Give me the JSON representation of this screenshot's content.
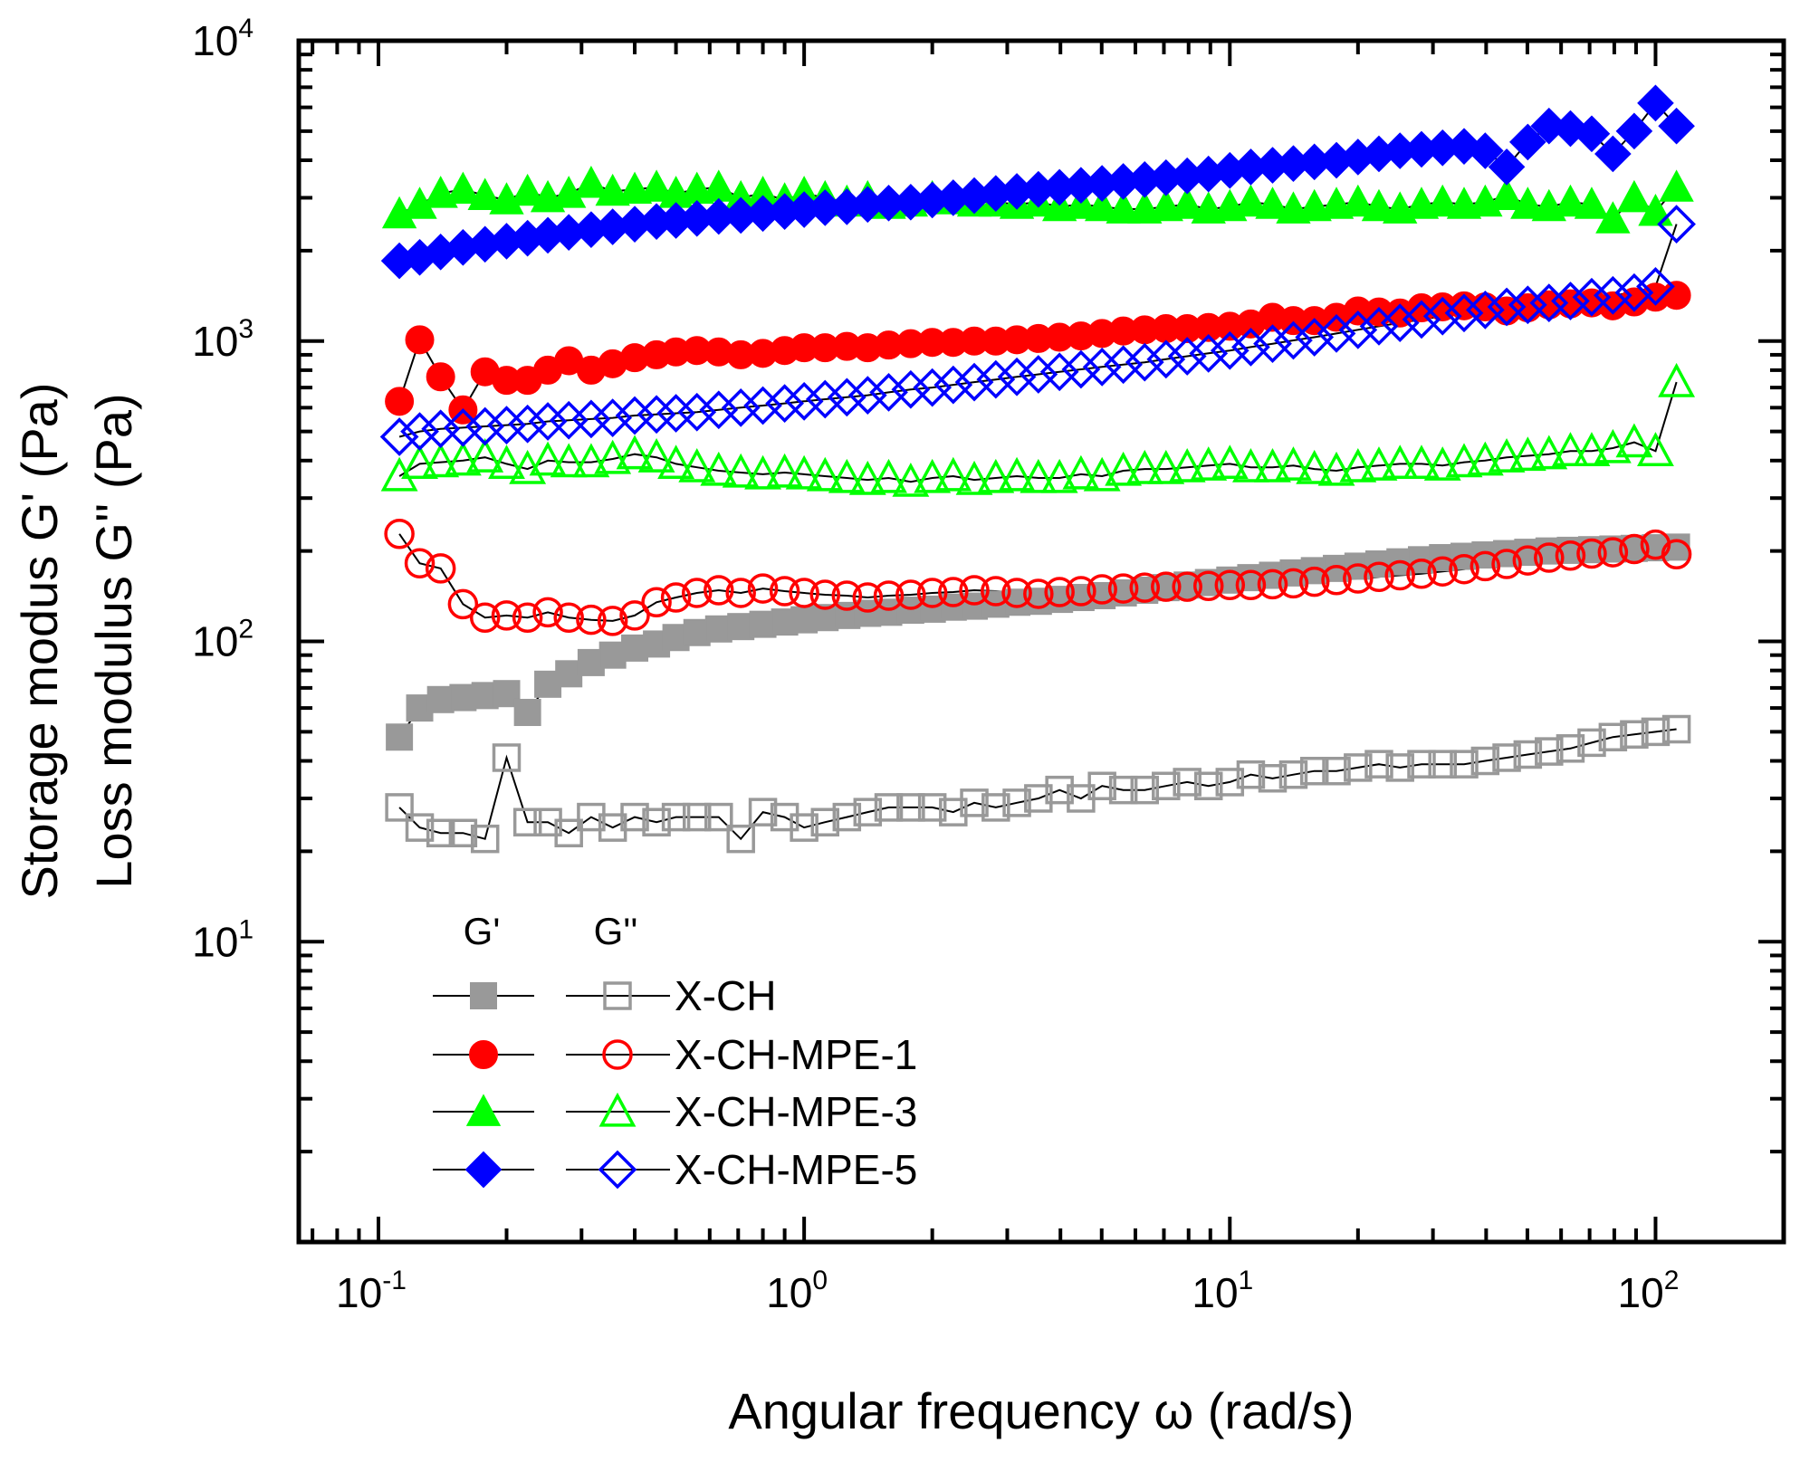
{
  "chart_data": {
    "type": "scatter",
    "xlabel": "Angular frequency ω (rad/s)",
    "ylabel_line1": "Storage modus G' (Pa)",
    "ylabel_line2": "Loss modulus G'' (Pa)",
    "xscale": "log",
    "yscale": "log",
    "xlim": [
      0.065,
      200
    ],
    "ylim": [
      1,
      10000
    ],
    "x_tick_labels": [
      {
        "value": 0.1,
        "base": "10",
        "exp": "-1"
      },
      {
        "value": 1,
        "base": "10",
        "exp": "0"
      },
      {
        "value": 10,
        "base": "10",
        "exp": "1"
      },
      {
        "value": 100,
        "base": "10",
        "exp": "2"
      }
    ],
    "y_tick_labels": [
      {
        "value": 10,
        "base": "10",
        "exp": "1"
      },
      {
        "value": 100,
        "base": "10",
        "exp": "2"
      },
      {
        "value": 1000,
        "base": "10",
        "exp": "3"
      },
      {
        "value": 10000,
        "base": "10",
        "exp": "4"
      }
    ],
    "legend": {
      "header_gp": "G'",
      "header_gpp": "G''",
      "placement": "bottom-left",
      "entries": [
        "X-CH",
        "X-CH-MPE-1",
        "X-CH-MPE-3",
        "X-CH-MPE-5"
      ]
    },
    "series": [
      {
        "name": "X-CH",
        "modulus": "G'",
        "marker": "square",
        "filled": true,
        "color": "#999999",
        "x": [
          0.112,
          0.125,
          0.14,
          0.158,
          0.178,
          0.2,
          0.224,
          0.25,
          0.28,
          0.316,
          0.355,
          0.4,
          0.45,
          0.5,
          0.56,
          0.63,
          0.71,
          0.8,
          0.9,
          1.0,
          1.12,
          1.26,
          1.41,
          1.58,
          1.78,
          2.0,
          2.24,
          2.51,
          2.82,
          3.16,
          3.55,
          3.98,
          4.47,
          5.01,
          5.62,
          6.31,
          7.08,
          7.94,
          8.91,
          10.0,
          11.2,
          12.6,
          14.1,
          15.8,
          17.8,
          20.0,
          22.4,
          25.1,
          28.2,
          31.6,
          35.5,
          39.8,
          44.7,
          50.1,
          56.2,
          63.1,
          70.8,
          79.4,
          89.1,
          100,
          112
        ],
        "y": [
          48,
          60,
          64,
          65,
          66,
          67,
          58,
          72,
          78,
          85,
          90,
          95,
          98,
          103,
          107,
          110,
          112,
          114,
          116,
          118,
          120,
          122,
          124,
          125,
          127,
          128,
          130,
          131,
          133,
          135,
          136,
          138,
          140,
          142,
          145,
          148,
          151,
          154,
          157,
          160,
          163,
          166,
          169,
          172,
          175,
          178,
          181,
          184,
          187,
          190,
          192,
          194,
          196,
          198,
          200,
          201,
          202,
          203,
          204,
          205,
          206
        ]
      },
      {
        "name": "X-CH",
        "modulus": "G''",
        "marker": "square",
        "filled": false,
        "color": "#999999",
        "x": [
          0.112,
          0.125,
          0.14,
          0.158,
          0.178,
          0.2,
          0.224,
          0.25,
          0.28,
          0.316,
          0.355,
          0.4,
          0.45,
          0.5,
          0.56,
          0.63,
          0.71,
          0.8,
          0.9,
          1.0,
          1.12,
          1.26,
          1.41,
          1.58,
          1.78,
          2.0,
          2.24,
          2.51,
          2.82,
          3.16,
          3.55,
          3.98,
          4.47,
          5.01,
          5.62,
          6.31,
          7.08,
          7.94,
          8.91,
          10.0,
          11.2,
          12.6,
          14.1,
          15.8,
          17.8,
          20.0,
          22.4,
          25.1,
          28.2,
          31.6,
          35.5,
          39.8,
          44.7,
          50.1,
          56.2,
          63.1,
          70.8,
          79.4,
          89.1,
          100,
          112
        ],
        "y": [
          28,
          24,
          23,
          23,
          22,
          41,
          25,
          25,
          23,
          26,
          24,
          26,
          25,
          26,
          26,
          26,
          22,
          27,
          26,
          24,
          25,
          26,
          27,
          28,
          28,
          28,
          27,
          29,
          28,
          29,
          30,
          32,
          30,
          33,
          32,
          32,
          33,
          34,
          33,
          34,
          36,
          35,
          36,
          37,
          37,
          38,
          39,
          38,
          39,
          39,
          39,
          40,
          41,
          42,
          43,
          44,
          46,
          48,
          49,
          50,
          51
        ]
      },
      {
        "name": "X-CH-MPE-1",
        "modulus": "G'",
        "marker": "circle",
        "filled": true,
        "color": "#ff0000",
        "x": [
          0.112,
          0.125,
          0.14,
          0.158,
          0.178,
          0.2,
          0.224,
          0.25,
          0.28,
          0.316,
          0.355,
          0.4,
          0.45,
          0.5,
          0.56,
          0.63,
          0.71,
          0.8,
          0.9,
          1.0,
          1.12,
          1.26,
          1.41,
          1.58,
          1.78,
          2.0,
          2.24,
          2.51,
          2.82,
          3.16,
          3.55,
          3.98,
          4.47,
          5.01,
          5.62,
          6.31,
          7.08,
          7.94,
          8.91,
          10.0,
          11.2,
          12.6,
          14.1,
          15.8,
          17.8,
          20.0,
          22.4,
          25.1,
          28.2,
          31.6,
          35.5,
          39.8,
          44.7,
          50.1,
          56.2,
          63.1,
          70.8,
          79.4,
          89.1,
          100,
          112
        ],
        "y": [
          630,
          1010,
          760,
          590,
          790,
          740,
          740,
          800,
          860,
          800,
          840,
          880,
          900,
          920,
          930,
          920,
          900,
          910,
          930,
          950,
          950,
          960,
          950,
          970,
          980,
          990,
          990,
          1000,
          1000,
          1010,
          1020,
          1030,
          1040,
          1060,
          1080,
          1090,
          1100,
          1100,
          1110,
          1120,
          1140,
          1200,
          1170,
          1170,
          1200,
          1260,
          1250,
          1240,
          1290,
          1300,
          1310,
          1300,
          1260,
          1290,
          1320,
          1330,
          1340,
          1310,
          1350,
          1400,
          1420
        ]
      },
      {
        "name": "X-CH-MPE-1",
        "modulus": "G''",
        "marker": "circle",
        "filled": false,
        "color": "#ff0000",
        "x": [
          0.112,
          0.125,
          0.14,
          0.158,
          0.178,
          0.2,
          0.224,
          0.25,
          0.28,
          0.316,
          0.355,
          0.4,
          0.45,
          0.5,
          0.56,
          0.63,
          0.71,
          0.8,
          0.9,
          1.0,
          1.12,
          1.26,
          1.41,
          1.58,
          1.78,
          2.0,
          2.24,
          2.51,
          2.82,
          3.16,
          3.55,
          3.98,
          4.47,
          5.01,
          5.62,
          6.31,
          7.08,
          7.94,
          8.91,
          10.0,
          11.2,
          12.6,
          14.1,
          15.8,
          17.8,
          20.0,
          22.4,
          25.1,
          28.2,
          31.6,
          35.5,
          39.8,
          44.7,
          50.1,
          56.2,
          63.1,
          70.8,
          79.4,
          89.1,
          100,
          112
        ],
        "y": [
          228,
          182,
          175,
          133,
          120,
          122,
          120,
          125,
          120,
          118,
          117,
          122,
          135,
          140,
          145,
          148,
          145,
          150,
          147,
          145,
          143,
          142,
          140,
          142,
          143,
          145,
          146,
          148,
          147,
          145,
          144,
          146,
          147,
          149,
          150,
          151,
          152,
          152,
          153,
          154,
          154,
          155,
          156,
          158,
          160,
          162,
          164,
          166,
          168,
          171,
          174,
          178,
          181,
          186,
          190,
          193,
          196,
          198,
          203,
          210,
          195
        ]
      },
      {
        "name": "X-CH-MPE-3",
        "modulus": "G'",
        "marker": "triangle",
        "filled": true,
        "color": "#00ff00",
        "x": [
          0.112,
          0.125,
          0.14,
          0.158,
          0.178,
          0.2,
          0.224,
          0.25,
          0.28,
          0.316,
          0.355,
          0.4,
          0.45,
          0.5,
          0.56,
          0.63,
          0.71,
          0.8,
          0.9,
          1.0,
          1.12,
          1.26,
          1.41,
          1.58,
          1.78,
          2.0,
          2.24,
          2.51,
          2.82,
          3.16,
          3.55,
          3.98,
          4.47,
          5.01,
          5.62,
          6.31,
          7.08,
          7.94,
          8.91,
          10.0,
          11.2,
          12.6,
          14.1,
          15.8,
          17.8,
          20.0,
          22.4,
          25.1,
          28.2,
          31.6,
          35.5,
          39.8,
          44.7,
          50.1,
          56.2,
          63.1,
          70.8,
          79.4,
          89.1,
          100,
          112
        ],
        "y": [
          2650,
          2850,
          3100,
          3200,
          3050,
          2950,
          3150,
          3000,
          3100,
          3350,
          3150,
          3200,
          3250,
          3100,
          3200,
          3250,
          3000,
          3100,
          2950,
          3100,
          3000,
          2900,
          3000,
          2850,
          2900,
          3000,
          2950,
          2900,
          2900,
          2850,
          2900,
          2800,
          2850,
          2800,
          2750,
          2750,
          2800,
          2850,
          2750,
          2800,
          2900,
          2850,
          2750,
          2800,
          2850,
          2900,
          2800,
          2750,
          2850,
          2900,
          2850,
          2900,
          3050,
          2850,
          2800,
          2900,
          2850,
          2550,
          3000,
          2700,
          3250
        ]
      },
      {
        "name": "X-CH-MPE-3",
        "modulus": "G''",
        "marker": "triangle",
        "filled": false,
        "color": "#00ff00",
        "x": [
          0.112,
          0.125,
          0.14,
          0.158,
          0.178,
          0.2,
          0.224,
          0.25,
          0.28,
          0.316,
          0.355,
          0.4,
          0.45,
          0.5,
          0.56,
          0.63,
          0.71,
          0.8,
          0.9,
          1.0,
          1.12,
          1.26,
          1.41,
          1.58,
          1.78,
          2.0,
          2.24,
          2.51,
          2.82,
          3.16,
          3.55,
          3.98,
          4.47,
          5.01,
          5.62,
          6.31,
          7.08,
          7.94,
          8.91,
          10.0,
          11.2,
          12.6,
          14.1,
          15.8,
          17.8,
          20.0,
          22.4,
          25.1,
          28.2,
          31.6,
          35.5,
          39.8,
          44.7,
          50.1,
          56.2,
          63.1,
          70.8,
          79.4,
          89.1,
          100,
          112
        ],
        "y": [
          355,
          390,
          395,
          400,
          410,
          390,
          375,
          400,
          395,
          395,
          405,
          420,
          410,
          390,
          380,
          370,
          365,
          360,
          365,
          360,
          355,
          350,
          345,
          350,
          340,
          350,
          355,
          345,
          350,
          355,
          350,
          350,
          360,
          355,
          370,
          375,
          375,
          380,
          385,
          390,
          380,
          380,
          385,
          375,
          370,
          380,
          385,
          390,
          390,
          385,
          395,
          400,
          410,
          415,
          420,
          430,
          430,
          440,
          460,
          430,
          730
        ]
      },
      {
        "name": "X-CH-MPE-5",
        "modulus": "G'",
        "marker": "diamond",
        "filled": true,
        "color": "#0000ff",
        "x": [
          0.112,
          0.125,
          0.14,
          0.158,
          0.178,
          0.2,
          0.224,
          0.25,
          0.28,
          0.316,
          0.355,
          0.4,
          0.45,
          0.5,
          0.56,
          0.63,
          0.71,
          0.8,
          0.9,
          1.0,
          1.12,
          1.26,
          1.41,
          1.58,
          1.78,
          2.0,
          2.24,
          2.51,
          2.82,
          3.16,
          3.55,
          3.98,
          4.47,
          5.01,
          5.62,
          6.31,
          7.08,
          7.94,
          8.91,
          10.0,
          11.2,
          12.6,
          14.1,
          15.8,
          17.8,
          20.0,
          22.4,
          25.1,
          28.2,
          31.6,
          35.5,
          39.8,
          44.7,
          50.1,
          56.2,
          63.1,
          70.8,
          79.4,
          89.1,
          100,
          112
        ],
        "y": [
          1850,
          1900,
          1980,
          2050,
          2100,
          2150,
          2200,
          2250,
          2300,
          2350,
          2400,
          2450,
          2500,
          2520,
          2560,
          2600,
          2620,
          2660,
          2700,
          2740,
          2780,
          2800,
          2850,
          2880,
          2900,
          2950,
          3000,
          3050,
          3100,
          3150,
          3200,
          3250,
          3300,
          3350,
          3400,
          3450,
          3500,
          3550,
          3600,
          3700,
          3800,
          3850,
          3900,
          3950,
          4000,
          4100,
          4200,
          4300,
          4350,
          4400,
          4450,
          4300,
          3800,
          4600,
          5200,
          5100,
          4900,
          4200,
          5000,
          6200,
          5200
        ]
      },
      {
        "name": "X-CH-MPE-5",
        "modulus": "G''",
        "marker": "diamond",
        "filled": false,
        "color": "#0000ff",
        "x": [
          0.112,
          0.125,
          0.14,
          0.158,
          0.178,
          0.2,
          0.224,
          0.25,
          0.28,
          0.316,
          0.355,
          0.4,
          0.45,
          0.5,
          0.56,
          0.63,
          0.71,
          0.8,
          0.9,
          1.0,
          1.12,
          1.26,
          1.41,
          1.58,
          1.78,
          2.0,
          2.24,
          2.51,
          2.82,
          3.16,
          3.55,
          3.98,
          4.47,
          5.01,
          5.62,
          6.31,
          7.08,
          7.94,
          8.91,
          10.0,
          11.2,
          12.6,
          14.1,
          15.8,
          17.8,
          20.0,
          22.4,
          25.1,
          28.2,
          31.6,
          35.5,
          39.8,
          44.7,
          50.1,
          56.2,
          63.1,
          70.8,
          79.4,
          89.1,
          100,
          112
        ],
        "y": [
          480,
          500,
          510,
          515,
          520,
          525,
          530,
          540,
          545,
          550,
          555,
          565,
          570,
          575,
          580,
          590,
          600,
          610,
          620,
          630,
          640,
          650,
          660,
          675,
          690,
          700,
          715,
          730,
          745,
          760,
          775,
          790,
          805,
          820,
          835,
          850,
          870,
          890,
          910,
          930,
          955,
          980,
          1005,
          1030,
          1060,
          1090,
          1120,
          1150,
          1180,
          1210,
          1240,
          1270,
          1300,
          1320,
          1340,
          1360,
          1400,
          1420,
          1450,
          1520,
          2450
        ]
      }
    ]
  }
}
